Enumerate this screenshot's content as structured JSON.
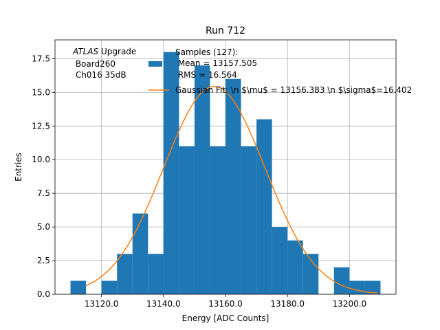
{
  "chart_data": {
    "type": "bar",
    "title": "Run 712",
    "xlabel": "Energy [ADC Counts]",
    "ylabel": "Entries",
    "xlim": [
      13105,
      13215
    ],
    "ylim": [
      0,
      18.9
    ],
    "xticks": [
      13120,
      13140,
      13160,
      13180,
      13200
    ],
    "xtick_labels": [
      "13120.0",
      "13140.0",
      "13160.0",
      "13180.0",
      "13200.0"
    ],
    "yticks": [
      0,
      2.5,
      5,
      7.5,
      10,
      12.5,
      15,
      17.5
    ],
    "ytick_labels": [
      "0.0",
      "2.5",
      "5.0",
      "7.5",
      "10.0",
      "12.5",
      "15.0",
      "17.5"
    ],
    "grid": true,
    "bin_edges": [
      13110,
      13115,
      13120,
      13125,
      13130,
      13135,
      13140,
      13145,
      13150,
      13155,
      13160,
      13165,
      13170,
      13175,
      13180,
      13185,
      13190,
      13195,
      13200,
      13205,
      13210
    ],
    "counts": [
      1,
      0,
      1,
      3,
      6,
      3,
      18,
      11,
      17,
      11,
      16,
      11,
      13,
      5,
      4,
      3,
      0,
      2,
      1,
      1
    ],
    "bar_color": "#1f77b4",
    "fit": {
      "type": "gaussian",
      "mu": 13156.383,
      "sigma": 16.402,
      "amplitude": 15.45,
      "x_range": [
        13115,
        13209
      ],
      "color": "#ff7f0e"
    },
    "legend": {
      "placement": "top-right",
      "entries": [
        {
          "kind": "patch",
          "color": "#1f77b4",
          "lines": [
            "Samples (127):",
            " Mean = 13157.505",
            " RMS = 16.564"
          ]
        },
        {
          "kind": "line",
          "color": "#ff7f0e",
          "lines": [
            "Gaussian Fit: \\n $\\mu$ = 13156.383 \\n $\\sigma$=16.402"
          ]
        }
      ]
    },
    "annotation": {
      "placement": "top-left",
      "line1_italic": "ATLAS",
      "line1_rest": " Upgrade",
      "line2": " Board260",
      "line3": " Ch016 35dB"
    }
  }
}
